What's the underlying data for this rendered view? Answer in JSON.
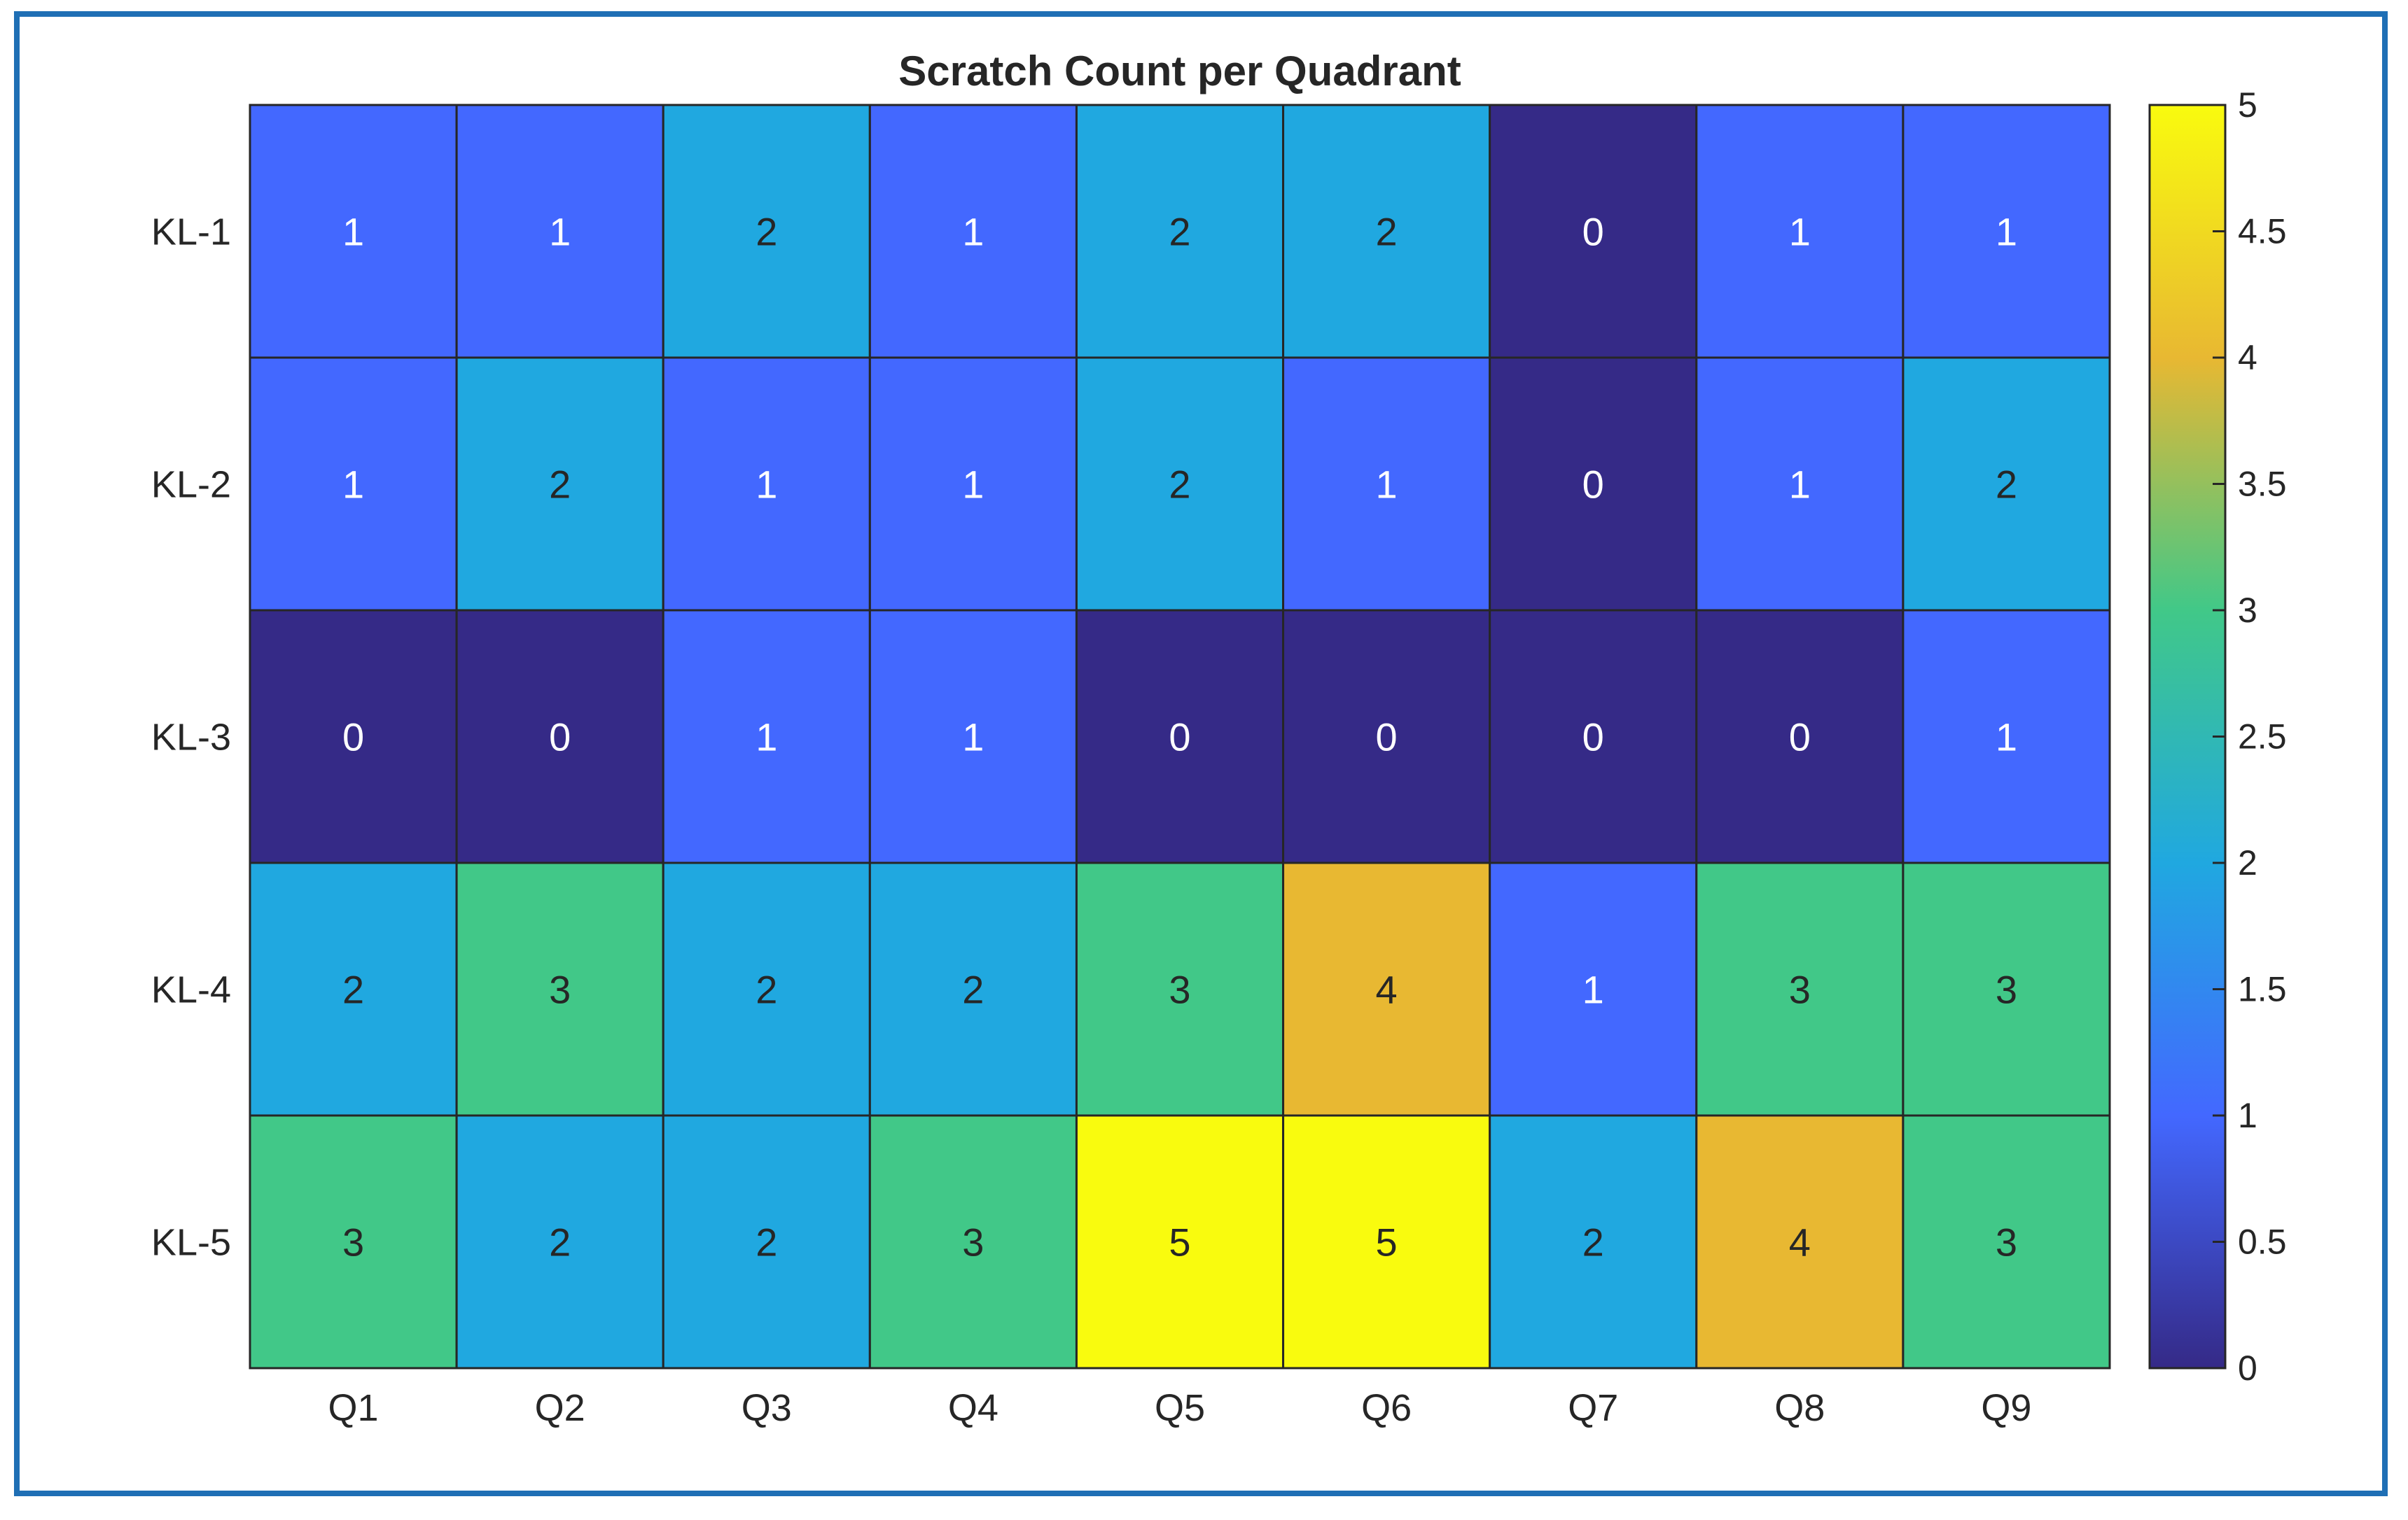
{
  "chart_data": {
    "type": "heatmap",
    "title": "Scratch Count per Quadrant",
    "x_categories": [
      "Q1",
      "Q2",
      "Q3",
      "Q4",
      "Q5",
      "Q6",
      "Q7",
      "Q8",
      "Q9"
    ],
    "y_categories": [
      "KL-1",
      "KL-2",
      "KL-3",
      "KL-4",
      "KL-5"
    ],
    "values": [
      [
        1,
        1,
        2,
        1,
        2,
        2,
        0,
        1,
        1
      ],
      [
        1,
        2,
        1,
        1,
        2,
        1,
        0,
        1,
        2
      ],
      [
        0,
        0,
        1,
        1,
        0,
        0,
        0,
        0,
        1
      ],
      [
        2,
        3,
        2,
        2,
        3,
        4,
        1,
        3,
        3
      ],
      [
        3,
        2,
        2,
        3,
        5,
        5,
        2,
        4,
        3
      ]
    ],
    "colorbar": {
      "range": [
        0,
        5
      ],
      "ticks": [
        "0",
        "0.5",
        "1",
        "1.5",
        "2",
        "2.5",
        "3",
        "3.5",
        "4",
        "4.5",
        "5"
      ],
      "colormap": "parula"
    },
    "grid": true
  },
  "colors": {
    "frame_border": "#1f6fb5",
    "cell_border": "#262626",
    "text_dark": "#262626"
  }
}
